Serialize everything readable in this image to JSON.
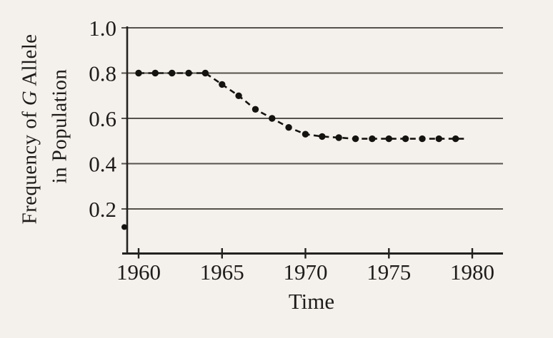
{
  "figure": {
    "background_color": "#f4f1ec",
    "ink_color": "#1e1c1a",
    "grid_color": "#55524c",
    "axis_color": "#24221f",
    "marker_color": "#151310"
  },
  "axis_labels": {
    "x_label": "Time",
    "y_label_line1_prefix": "Frequency of ",
    "y_label_line1_italic": "G",
    "y_label_line1_suffix": " Allele",
    "y_label_line2": "in Population"
  },
  "chart_data": {
    "type": "line",
    "title": "",
    "xlabel": "Time",
    "ylabel": "Frequency of G Allele in Population",
    "line_style": "dashed",
    "marker": "filled-circle",
    "grid": "horizontal-only",
    "legend": "none",
    "xlim": [
      1959.3,
      1981.8
    ],
    "ylim": [
      0,
      1.0
    ],
    "xticks": [
      1960,
      1965,
      1970,
      1975,
      1980
    ],
    "xtick_labels": [
      "1960",
      "1965",
      "1970",
      "1975",
      "1980"
    ],
    "yticks": [
      0.2,
      0.4,
      0.6,
      0.8,
      1.0
    ],
    "ytick_labels": [
      "0.2",
      "0.4",
      "0.6",
      "0.8",
      "1.0"
    ],
    "series": [
      {
        "x": [
          1960,
          1961,
          1962,
          1963,
          1964,
          1965,
          1966,
          1967,
          1968,
          1969,
          1970,
          1971,
          1972,
          1973,
          1974,
          1975,
          1976,
          1977,
          1978,
          1979
        ],
        "y": [
          0.8,
          0.8,
          0.8,
          0.8,
          0.8,
          0.75,
          0.7,
          0.64,
          0.6,
          0.56,
          0.53,
          0.52,
          0.515,
          0.51,
          0.51,
          0.51,
          0.51,
          0.51,
          0.51,
          0.51
        ]
      }
    ],
    "stray_axis_dot": {
      "value": 0.12
    }
  }
}
